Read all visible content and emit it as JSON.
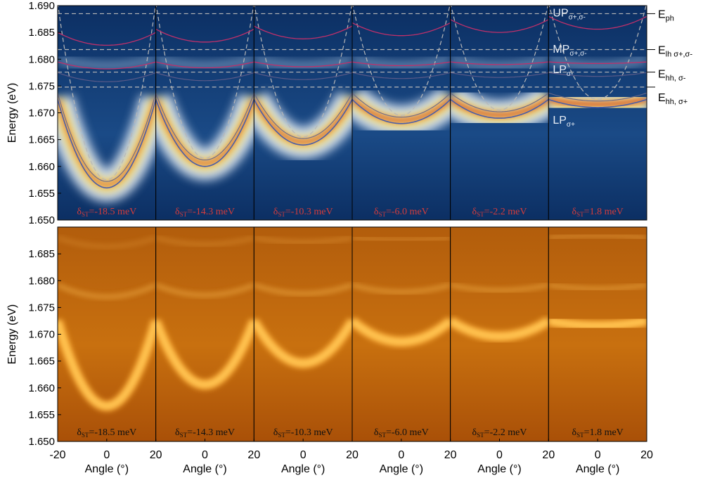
{
  "chart_data": [
    {
      "type": "heatmap",
      "panel": "top",
      "ylabel": "Energy (eV)",
      "ylim": [
        1.65,
        1.69
      ],
      "yticks": [
        "1.650",
        "1.655",
        "1.660",
        "1.665",
        "1.670",
        "1.675",
        "1.680",
        "1.685",
        "1.690"
      ],
      "colormap": "blue-white-yellow-red",
      "reference_lines": [
        {
          "label": "E",
          "sub": "ph",
          "energy": 1.6885
        },
        {
          "label": "E",
          "sub": "lh σ+,σ-",
          "energy": 1.6818
        },
        {
          "label": "E",
          "sub": "hh, σ-",
          "energy": 1.6776
        },
        {
          "label": "E",
          "sub": "hh, σ+",
          "energy": 1.6748
        }
      ],
      "branch_labels": [
        {
          "label": "UP",
          "sub": "σ+,σ-"
        },
        {
          "label": "MP",
          "sub": "σ+,σ-"
        },
        {
          "label": "LP",
          "sub": "σ-"
        },
        {
          "label": "LP",
          "sub": "σ+"
        }
      ],
      "panels": [
        {
          "label": "δ",
          "sub": "ST",
          "value": "=-18.5 meV",
          "lp_min": 1.656,
          "detuning": -18.5
        },
        {
          "label": "δ",
          "sub": "ST",
          "value": "=-14.3 meV",
          "lp_min": 1.66,
          "detuning": -14.3
        },
        {
          "label": "δ",
          "sub": "ST",
          "value": "=-10.3 meV",
          "lp_min": 1.664,
          "detuning": -10.3
        },
        {
          "label": "δ",
          "sub": "ST",
          "value": "=-6.0 meV",
          "lp_min": 1.668,
          "detuning": -6.0
        },
        {
          "label": "δ",
          "sub": "ST",
          "value": "=-2.2 meV",
          "lp_min": 1.669,
          "detuning": -2.2
        },
        {
          "label": "δ",
          "sub": "ST",
          "value": "=1.8 meV",
          "lp_min": 1.671,
          "detuning": 1.8
        }
      ]
    },
    {
      "type": "heatmap",
      "panel": "bottom",
      "xlabel": "Angle (°)",
      "ylabel": "Energy (eV)",
      "xlim": [
        -20,
        20
      ],
      "ylim": [
        1.65,
        1.69
      ],
      "xticks": [
        "-20",
        "0",
        "20"
      ],
      "yticks": [
        "1.650",
        "1.655",
        "1.660",
        "1.665",
        "1.670",
        "1.675",
        "1.680",
        "1.685"
      ],
      "colormap": "orange",
      "panels": [
        {
          "label": "δ",
          "sub": "ST",
          "value": "=-18.5 meV"
        },
        {
          "label": "δ",
          "sub": "ST",
          "value": "=-14.3 meV"
        },
        {
          "label": "δ",
          "sub": "ST",
          "value": "=-10.3 meV"
        },
        {
          "label": "δ",
          "sub": "ST",
          "value": "=-6.0 meV"
        },
        {
          "label": "δ",
          "sub": "ST",
          "value": "=-2.2 meV"
        },
        {
          "label": "δ",
          "sub": "ST",
          "value": "=1.8 meV"
        }
      ]
    }
  ],
  "colors": {
    "top_background": "#0b2a55",
    "fit_line": "#4a5ea8",
    "fit_line_upper": "#c0306a",
    "dashed": "#b8b8b8",
    "top_label": "#d43c3c",
    "bottom_background": "#c26a10",
    "bottom_signal": "#ffd86a"
  }
}
